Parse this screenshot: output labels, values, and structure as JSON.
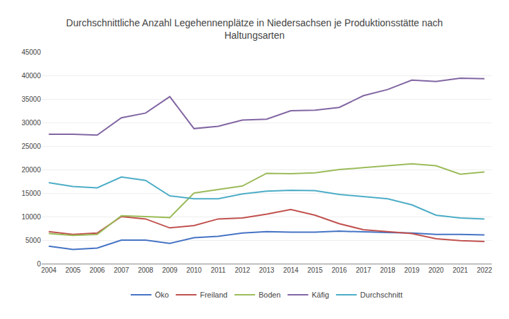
{
  "chart_data": {
    "type": "line",
    "title": "Durchschnittliche Anzahl Legehennenplätze in Niedersachsen je Produktionsstätte nach\nHaltungsarten",
    "x": [
      2004,
      2005,
      2006,
      2007,
      2008,
      2009,
      2010,
      2011,
      2012,
      2013,
      2014,
      2015,
      2016,
      2017,
      2018,
      2019,
      2020,
      2021,
      2022
    ],
    "series": [
      {
        "name": "Öko",
        "color": "#4472c4",
        "values": [
          3700,
          3000,
          3300,
          5000,
          5000,
          4300,
          5500,
          5800,
          6500,
          6800,
          6700,
          6700,
          6900,
          6700,
          6600,
          6500,
          6200,
          6200,
          6100
        ]
      },
      {
        "name": "Freiland",
        "color": "#c0504d",
        "values": [
          6800,
          6200,
          6500,
          10000,
          9500,
          7600,
          8100,
          9500,
          9700,
          10500,
          11500,
          10300,
          8500,
          7200,
          6800,
          6400,
          5300,
          4900,
          4700
        ]
      },
      {
        "name": "Boden",
        "color": "#9bbb59",
        "values": [
          6400,
          6000,
          6200,
          10200,
          10000,
          9800,
          15000,
          15800,
          16500,
          19200,
          19100,
          19300,
          20000,
          20400,
          20800,
          21200,
          20800,
          19000,
          19500
        ]
      },
      {
        "name": "Käfig",
        "color": "#8064a2",
        "values": [
          27500,
          27500,
          27300,
          31000,
          32000,
          35500,
          28700,
          29200,
          30500,
          30700,
          32500,
          32600,
          33200,
          35700,
          37000,
          39000,
          38700,
          39400,
          39300
        ]
      },
      {
        "name": "Durchschnitt",
        "color": "#4bacc6",
        "values": [
          17200,
          16400,
          16100,
          18400,
          17700,
          14400,
          13800,
          13800,
          14800,
          15400,
          15600,
          15500,
          14700,
          14300,
          13800,
          12500,
          10300,
          9700,
          9500
        ]
      }
    ],
    "xlim": [
      2003.7,
      2022.3
    ],
    "xticks": [
      2004,
      2005,
      2006,
      2007,
      2008,
      2009,
      2010,
      2011,
      2012,
      2013,
      2014,
      2015,
      2016,
      2017,
      2018,
      2019,
      2020,
      2021,
      2022
    ],
    "ylim": [
      0,
      45000
    ],
    "yticks": [
      0,
      5000,
      10000,
      15000,
      20000,
      25000,
      30000,
      35000,
      40000,
      45000
    ],
    "grid": true,
    "legend": "bottom"
  }
}
